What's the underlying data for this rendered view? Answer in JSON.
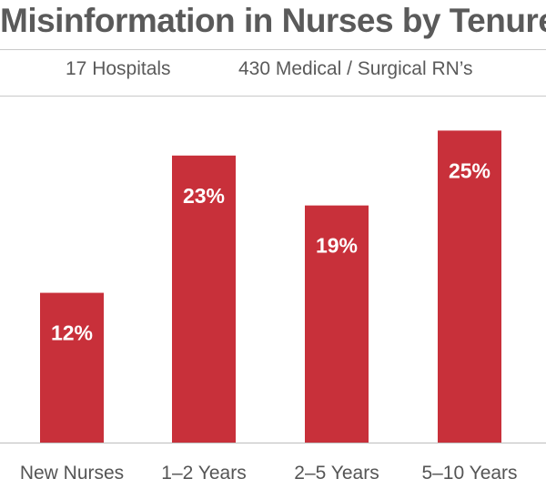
{
  "chart_data": {
    "type": "bar",
    "title": "Misinformation in Nurses by Tenure",
    "subtitle_left": "17 Hospitals",
    "subtitle_right": "430 Medical / Surgical RN’s",
    "categories": [
      "New Nurses",
      "1–2 Years",
      "2–5 Years",
      "5–10 Years"
    ],
    "values": [
      12,
      23,
      19,
      25
    ],
    "value_labels": [
      "12%",
      "23%",
      "19%",
      "25%"
    ],
    "ylim": [
      0,
      27
    ],
    "grid": false,
    "legend": "none",
    "bar_color": "#c8303a"
  }
}
